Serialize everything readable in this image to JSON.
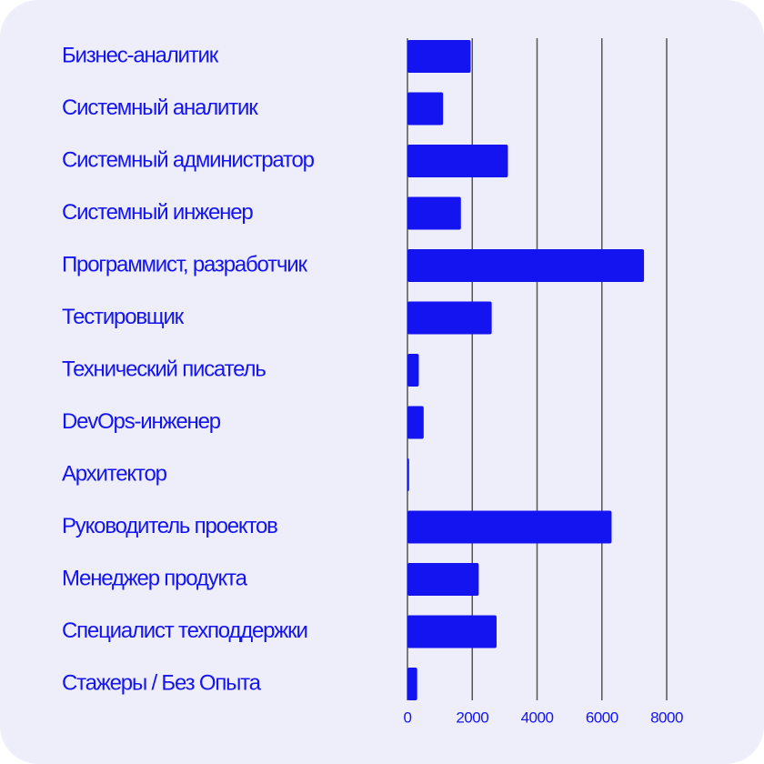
{
  "chart_data": {
    "type": "bar",
    "orientation": "horizontal",
    "categories": [
      "Бизнес-аналитик",
      "Системный аналитик",
      "Системный администратор",
      "Системный инженер",
      "Программист, разработчик",
      "Тестировщик",
      "Технический писатель",
      "DevOps-инженер",
      "Архитектор",
      "Руководитель проектов",
      "Менеджер продукта",
      "Специалист техподдержки",
      "Стажеры / Без Опыта"
    ],
    "values": [
      1950,
      1100,
      3100,
      1650,
      7300,
      2600,
      350,
      500,
      50,
      6300,
      2200,
      2750,
      300
    ],
    "color": "#1414f0",
    "xlim": [
      0,
      8000
    ],
    "xticks": [
      0,
      2000,
      4000,
      6000,
      8000
    ],
    "grid": true
  }
}
